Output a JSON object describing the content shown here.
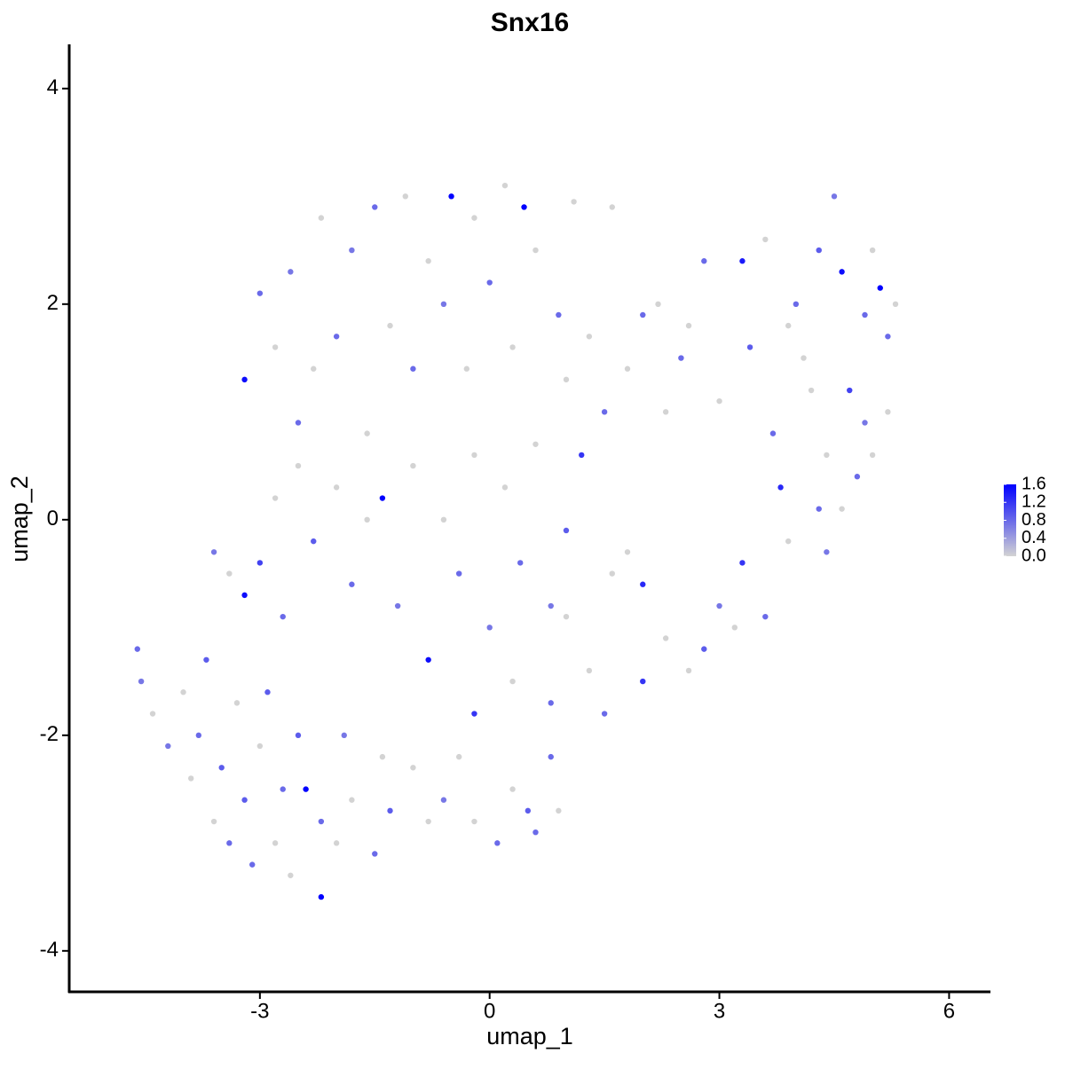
{
  "chart_data": {
    "type": "scatter",
    "title": "Snx16",
    "x_label": "umap_1",
    "y_label": "umap_2",
    "xlim": [
      -5.49,
      6.54
    ],
    "ylim": [
      -4.38,
      4.41
    ],
    "xticks": [
      -3,
      0,
      3,
      6
    ],
    "yticks": [
      -4,
      -2,
      0,
      2,
      4
    ],
    "grid": false,
    "low_color": "#d3d3d3",
    "high_color": "#0000ff",
    "colorlim": [
      0,
      1.6
    ],
    "colorbar_ticks": [
      {
        "value": 0,
        "label": "0.0"
      },
      0.4,
      0.8,
      1.2,
      1.6
    ],
    "x": [
      -4.6,
      -4.55,
      -4.4,
      -4.2,
      -4.0,
      -3.9,
      -3.8,
      -3.7,
      -3.6,
      -3.5,
      -3.4,
      -3.3,
      -3.2,
      -3.1,
      -3.0,
      -2.9,
      -2.8,
      -2.7,
      -2.6,
      -2.5,
      -2.4,
      -2.2,
      -2.2,
      -2.0,
      -1.9,
      -1.8,
      -1.5,
      -1.4,
      -1.3,
      -1.0,
      -0.8,
      -0.6,
      -0.4,
      -0.2,
      0.1,
      0.3,
      0.5,
      0.6,
      0.8,
      0.9,
      -3.6,
      -3.4,
      -3.2,
      -3.0,
      -2.8,
      -2.7,
      -2.5,
      -2.3,
      -2.0,
      -1.8,
      -1.6,
      -1.4,
      -1.2,
      -1.0,
      -0.8,
      -0.6,
      -0.4,
      -0.2,
      0,
      0.2,
      0.4,
      0.6,
      0.8,
      1.0,
      1.2,
      1.0,
      -0.2,
      0.3,
      0.8,
      1.3,
      1.6,
      1.5,
      2.0,
      2.3,
      2.6,
      2.8,
      3.0,
      3.3,
      3.6,
      3.2,
      3.9,
      4.3,
      4.6,
      4.8,
      5.0,
      4.4,
      2.0,
      1.8,
      -3.2,
      -3.0,
      -2.8,
      -2.6,
      -2.5,
      -2.3,
      -2.2,
      -2.0,
      -1.8,
      -1.6,
      -1.5,
      -1.3,
      -1.1,
      -1.0,
      -0.8,
      -0.6,
      -0.5,
      -0.3,
      -0.2,
      0.0,
      0.2,
      0.3,
      0.45,
      0.6,
      0.9,
      1.0,
      1.1,
      1.3,
      1.6,
      1.5,
      1.8,
      2.0,
      2.3,
      2.6,
      2.8,
      3.0,
      3.3,
      3.4,
      3.6,
      3.7,
      3.8,
      3.9,
      4.0,
      4.2,
      4.3,
      4.5,
      4.6,
      4.7,
      4.9,
      5.0,
      5.1,
      5.2,
      5.3,
      5.2,
      4.9,
      4.1,
      4.4,
      2.5,
      2.2
    ],
    "y": [
      -1.2,
      -1.5,
      -1.8,
      -2.1,
      -1.6,
      -2.4,
      -2.0,
      -1.3,
      -2.8,
      -2.3,
      -3.0,
      -1.7,
      -2.6,
      -3.2,
      -2.1,
      -1.6,
      -3.0,
      -2.5,
      -3.3,
      -2.0,
      -2.5,
      -3.5,
      -2.8,
      -3.0,
      -2.0,
      -2.6,
      -3.1,
      -2.2,
      -2.7,
      -2.3,
      -2.8,
      -2.6,
      -2.2,
      -2.8,
      -3.0,
      -2.5,
      -2.7,
      -2.9,
      -2.2,
      -2.7,
      -0.3,
      -0.5,
      -0.7,
      -0.4,
      0.2,
      -0.9,
      0.5,
      -0.2,
      0.3,
      -0.6,
      0.0,
      0.2,
      -0.8,
      0.5,
      -1.3,
      0.0,
      -0.5,
      0.6,
      -1.0,
      0.3,
      -0.4,
      0.7,
      -0.8,
      -0.1,
      0.6,
      -0.9,
      -1.8,
      -1.5,
      -1.7,
      -1.4,
      -0.5,
      -1.8,
      -1.5,
      -1.1,
      -1.4,
      -1.2,
      -0.8,
      -0.4,
      -0.9,
      -1.0,
      -0.2,
      0.1,
      0.1,
      0.4,
      0.6,
      -0.3,
      -0.6,
      -0.3,
      1.3,
      2.1,
      1.6,
      2.3,
      0.9,
      1.4,
      2.8,
      1.7,
      2.5,
      0.8,
      2.9,
      1.8,
      3.0,
      1.4,
      2.4,
      2.0,
      3.0,
      1.4,
      2.8,
      2.2,
      3.1,
      1.6,
      2.9,
      2.5,
      1.9,
      1.3,
      2.95,
      1.7,
      2.9,
      1.0,
      1.4,
      1.9,
      1.0,
      1.8,
      2.4,
      1.1,
      2.4,
      1.6,
      2.6,
      0.8,
      0.3,
      1.8,
      2.0,
      1.2,
      2.5,
      3.0,
      2.3,
      1.2,
      1.9,
      2.5,
      2.15,
      1.7,
      2.0,
      1.0,
      0.9,
      1.5,
      0.6,
      1.5,
      2.0
    ],
    "values": [
      0.8,
      0.7,
      0,
      0.7,
      0,
      0,
      0.8,
      0.9,
      0,
      0.9,
      0.8,
      0,
      0.9,
      0.8,
      0,
      0.9,
      0,
      0.8,
      0,
      0.9,
      1.6,
      1.6,
      0.8,
      0,
      0.7,
      0,
      0.8,
      0,
      0.9,
      0,
      0,
      0.7,
      0,
      0,
      0.8,
      0,
      0.9,
      0.8,
      0.8,
      0,
      0.7,
      0,
      1.5,
      1.1,
      0,
      0.8,
      0,
      0.9,
      0,
      0.8,
      0,
      1.6,
      0.7,
      0,
      1.5,
      0,
      0.8,
      0,
      0.7,
      0,
      0.8,
      0,
      0.7,
      0.9,
      1.2,
      0,
      1.2,
      0,
      0.8,
      0,
      0,
      0.8,
      1.2,
      0,
      0,
      0.9,
      0.7,
      1.2,
      0.8,
      0,
      0,
      0.8,
      0,
      0.8,
      0,
      0.7,
      1.3,
      0,
      1.5,
      0.8,
      0,
      0.7,
      0.8,
      0,
      0,
      0.8,
      0.7,
      0,
      0.8,
      0,
      0,
      0.8,
      0,
      0.7,
      1.6,
      0,
      0,
      0.8,
      0,
      0,
      1.6,
      0,
      0.8,
      0,
      0,
      0,
      0,
      0.8,
      0,
      0.8,
      0,
      0,
      0.8,
      0,
      1.4,
      0.9,
      0,
      0.8,
      1.3,
      0,
      0.8,
      0,
      0.9,
      0.7,
      1.5,
      1.1,
      0.8,
      0,
      1.6,
      0.8,
      0,
      0,
      0.7,
      0,
      0,
      0.8,
      0
    ]
  }
}
